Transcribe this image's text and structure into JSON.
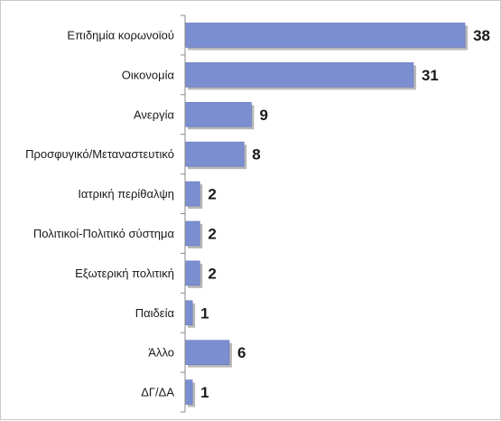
{
  "chart_data": {
    "type": "bar",
    "orientation": "horizontal",
    "title": "",
    "xlabel": "",
    "ylabel": "",
    "categories": [
      "Επιδημία κορωνοϊού",
      "Οικονομία",
      "Ανεργία",
      "Προσφυγικό/Μεταναστευτικό",
      "Ιατρική περίθαλψη",
      "Πολιτικοί-Πολιτικό σύστημα",
      "Εξωτερική πολιτική",
      "Παιδεία",
      "Άλλο",
      "ΔΓ/ΔΑ"
    ],
    "values": [
      38,
      31,
      9,
      8,
      2,
      2,
      2,
      1,
      6,
      1
    ],
    "xlim": [
      0,
      40
    ],
    "grid": false,
    "legend": "none",
    "colors": {
      "bar": "#7b8ed0",
      "bar_edge": "#6477bd",
      "shadow": "#7d7d7d",
      "axis": "#8a8a8a"
    }
  }
}
